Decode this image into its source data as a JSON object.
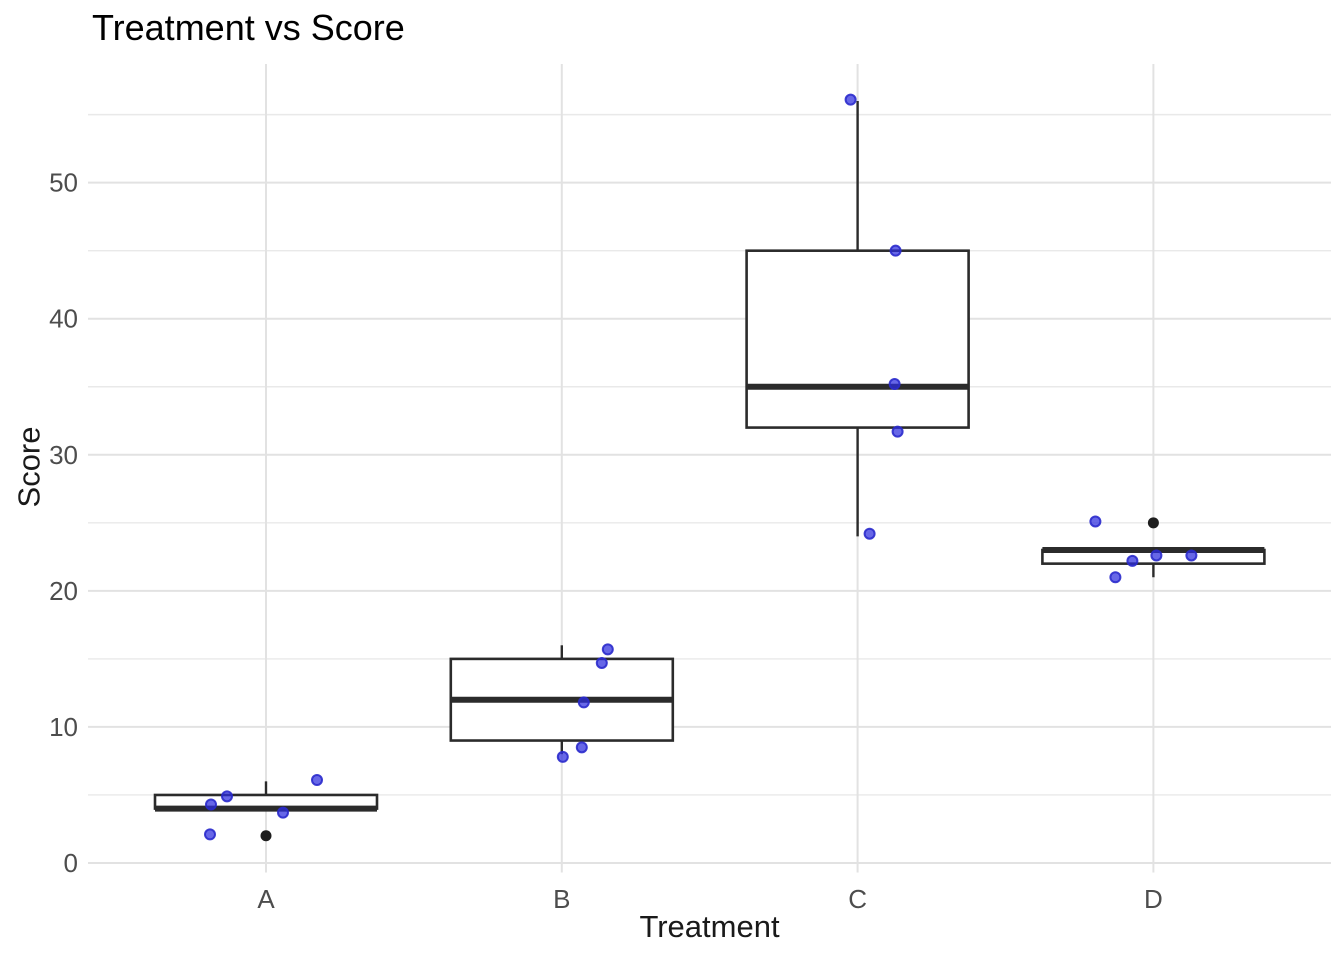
{
  "title": "Treatment vs Score",
  "x_axis": {
    "title": "Treatment",
    "tick_labels": [
      "A",
      "B",
      "C",
      "D"
    ]
  },
  "y_axis": {
    "title": "Score",
    "tick_labels": [
      "0",
      "10",
      "20",
      "30",
      "40",
      "50"
    ],
    "tick_values": [
      0,
      10,
      20,
      30,
      40,
      50
    ],
    "minor_tick_values": [
      5,
      15,
      25,
      35,
      45,
      55
    ]
  },
  "chart_data": {
    "type": "boxplot",
    "title": "Treatment vs Score",
    "xlabel": "Treatment",
    "ylabel": "Score",
    "categories": [
      "A",
      "B",
      "C",
      "D"
    ],
    "ylim": [
      -0.7,
      58.7
    ],
    "grid": "horizontal major+minor lines, vertical major line at each category; no axis lines or tick marks",
    "legend": "none",
    "groups": [
      {
        "category": "A",
        "values": [
          2,
          4,
          4,
          5,
          6
        ],
        "box": {
          "q1": 4,
          "median": 4,
          "q3": 5,
          "whisker_low": 4,
          "whisker_high": 6,
          "outliers": [
            2
          ]
        }
      },
      {
        "category": "B",
        "values": [
          8,
          9,
          12,
          15,
          16
        ],
        "box": {
          "q1": 9,
          "median": 12,
          "q3": 15,
          "whisker_low": 8,
          "whisker_high": 16,
          "outliers": []
        }
      },
      {
        "category": "C",
        "values": [
          24,
          32,
          35,
          45,
          56
        ],
        "box": {
          "q1": 32,
          "median": 35,
          "q3": 45,
          "whisker_low": 24,
          "whisker_high": 56,
          "outliers": []
        }
      },
      {
        "category": "D",
        "values": [
          21,
          22,
          23,
          23,
          25
        ],
        "box": {
          "q1": 22,
          "median": 23,
          "q3": 23,
          "whisker_low": 21,
          "whisker_high": 23,
          "outliers": [
            25
          ]
        }
      }
    ],
    "jitter_points": [
      {
        "category": "A",
        "value": 4.3,
        "x_offset": -55
      },
      {
        "category": "A",
        "value": 4.9,
        "x_offset": -39
      },
      {
        "category": "A",
        "value": 6.1,
        "x_offset": 51
      },
      {
        "category": "A",
        "value": 3.7,
        "x_offset": 17
      },
      {
        "category": "A",
        "value": 2.1,
        "x_offset": -56
      },
      {
        "category": "B",
        "value": 15.7,
        "x_offset": 46
      },
      {
        "category": "B",
        "value": 14.7,
        "x_offset": 40
      },
      {
        "category": "B",
        "value": 11.8,
        "x_offset": 22
      },
      {
        "category": "B",
        "value": 8.5,
        "x_offset": 20
      },
      {
        "category": "B",
        "value": 7.8,
        "x_offset": 1
      },
      {
        "category": "C",
        "value": 56.1,
        "x_offset": -7
      },
      {
        "category": "C",
        "value": 45.0,
        "x_offset": 38
      },
      {
        "category": "C",
        "value": 35.2,
        "x_offset": 37
      },
      {
        "category": "C",
        "value": 31.7,
        "x_offset": 40
      },
      {
        "category": "C",
        "value": 24.2,
        "x_offset": 12
      },
      {
        "category": "D",
        "value": 25.1,
        "x_offset": -58
      },
      {
        "category": "D",
        "value": 22.6,
        "x_offset": 3
      },
      {
        "category": "D",
        "value": 22.6,
        "x_offset": 38
      },
      {
        "category": "D",
        "value": 22.2,
        "x_offset": -21
      },
      {
        "category": "D",
        "value": 21.0,
        "x_offset": -38
      }
    ],
    "style": {
      "background": "#FFFFFF",
      "grid_major": "#E2E2E2",
      "grid_minor": "#E9E9E9",
      "box_stroke": "#2B2B2B",
      "box_fill": "#FFFFFF",
      "point_fill": "#2C2CDE",
      "point_fill_opacity": 0.72,
      "point_stroke": "#2A2ACC",
      "point_stroke_opacity": 0.9,
      "outlier_color": "#1E1E1E",
      "tick_label_color": "#4D4D4D",
      "axis_title_color": "#1A1A1A",
      "title_color": "#000000"
    }
  }
}
